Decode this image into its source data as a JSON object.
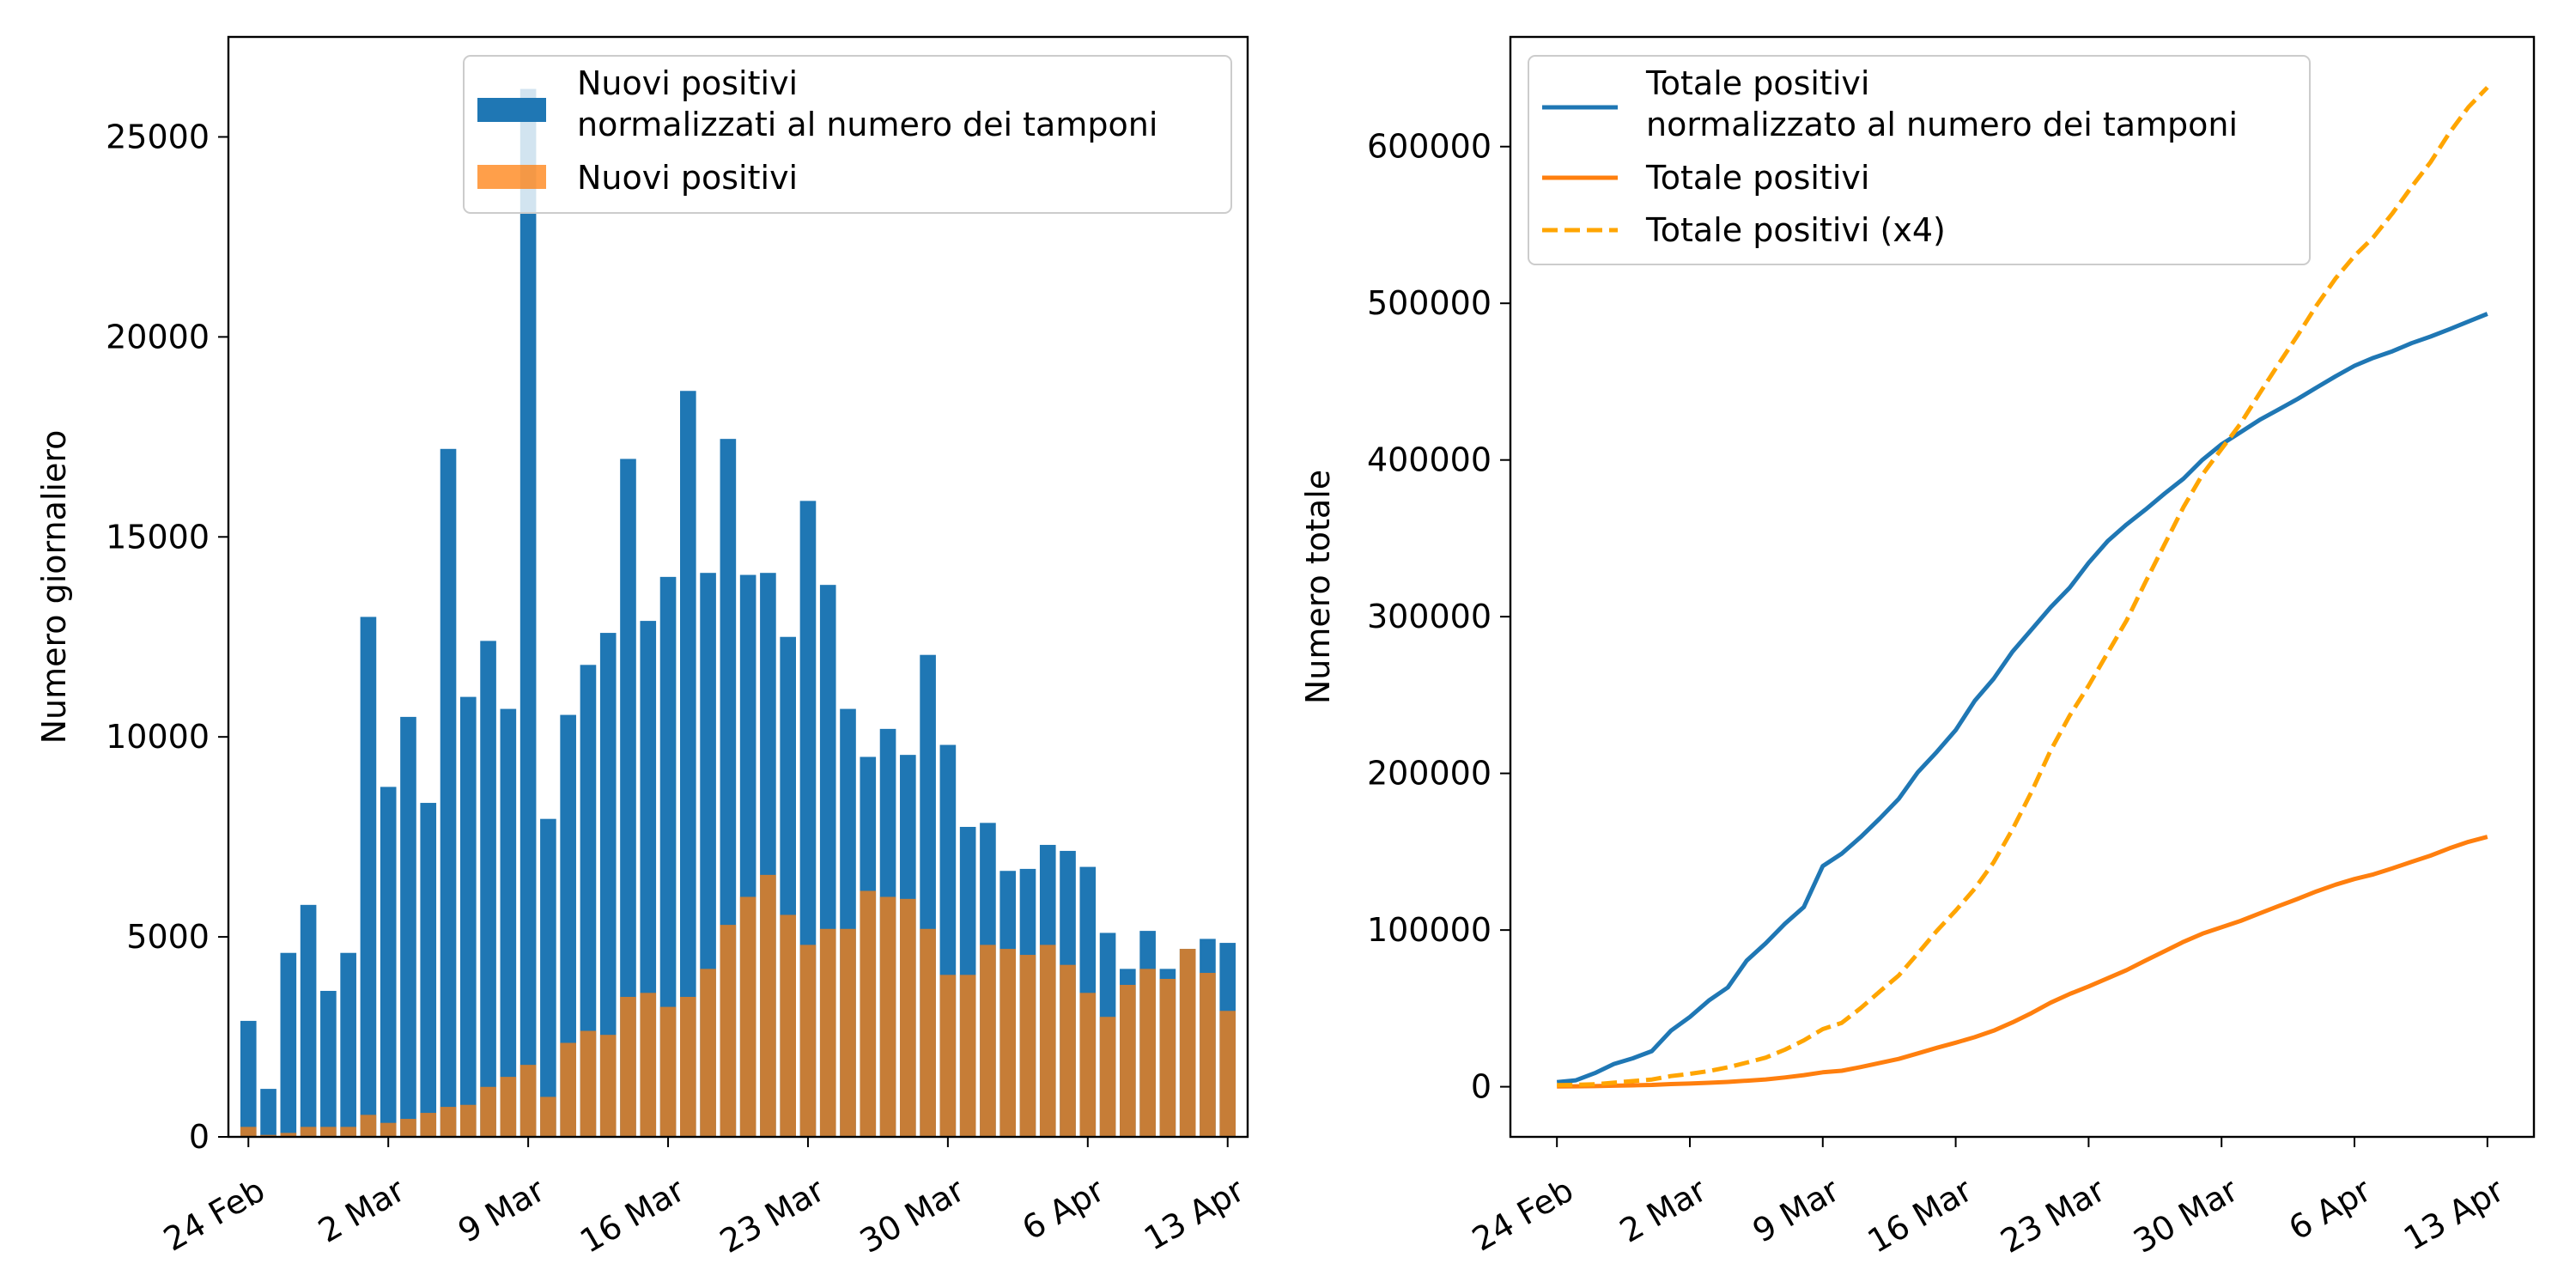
{
  "chart_data": [
    {
      "type": "bar",
      "title": "",
      "xlabel": "",
      "ylabel": "Numero giornaliero",
      "ylim": [
        0,
        27500
      ],
      "yticks": [
        0,
        5000,
        10000,
        15000,
        20000,
        25000
      ],
      "grid": false,
      "legend_position": "top-right",
      "x_tick_labels": [
        {
          "index": 0,
          "label": "24 Feb"
        },
        {
          "index": 7,
          "label": "2 Mar"
        },
        {
          "index": 14,
          "label": "9 Mar"
        },
        {
          "index": 21,
          "label": "16 Mar"
        },
        {
          "index": 28,
          "label": "23 Mar"
        },
        {
          "index": 35,
          "label": "30 Mar"
        },
        {
          "index": 42,
          "label": "6 Apr"
        },
        {
          "index": 49,
          "label": "13 Apr"
        }
      ],
      "x_start": "2020-02-24",
      "series": [
        {
          "name": "Nuovi positivi\nnormalizzati al numero dei tamponi",
          "color": "#1f77b4",
          "values": [
            2900,
            1200,
            4600,
            5800,
            3650,
            4600,
            13000,
            8750,
            10500,
            8350,
            17200,
            11000,
            12400,
            10700,
            26200,
            7950,
            10550,
            11800,
            12600,
            16950,
            12900,
            14000,
            18650,
            14100,
            17450,
            14050,
            14100,
            12500,
            15900,
            13800,
            10700,
            9500,
            10200,
            9550,
            12050,
            9800,
            7750,
            7850,
            6650,
            6700,
            7300,
            7150,
            6750,
            5100,
            4200,
            5150,
            4200,
            4700,
            4950,
            4850
          ]
        },
        {
          "name": "Nuovi positivi",
          "color": "#ff7f0e",
          "values": [
            250,
            50,
            100,
            250,
            250,
            250,
            550,
            350,
            450,
            600,
            750,
            800,
            1250,
            1500,
            1800,
            1000,
            2350,
            2650,
            2550,
            3500,
            3600,
            3250,
            3500,
            4200,
            5300,
            6000,
            6550,
            5550,
            4800,
            5200,
            5200,
            6150,
            6000,
            5950,
            5200,
            4050,
            4050,
            4800,
            4700,
            4550,
            4800,
            4300,
            3600,
            3000,
            3800,
            4200,
            3950,
            4700,
            4100,
            3150
          ]
        }
      ]
    },
    {
      "type": "line",
      "title": "",
      "xlabel": "",
      "ylabel": "Numero totale",
      "ylim": [
        -32000,
        670000
      ],
      "yticks": [
        0,
        100000,
        200000,
        300000,
        400000,
        500000,
        600000
      ],
      "grid": false,
      "legend_position": "top-left",
      "x_tick_labels": [
        {
          "index": 0,
          "label": "24 Feb"
        },
        {
          "index": 7,
          "label": "2 Mar"
        },
        {
          "index": 14,
          "label": "9 Mar"
        },
        {
          "index": 21,
          "label": "16 Mar"
        },
        {
          "index": 28,
          "label": "23 Mar"
        },
        {
          "index": 35,
          "label": "30 Mar"
        },
        {
          "index": 42,
          "label": "6 Apr"
        },
        {
          "index": 49,
          "label": "13 Apr"
        }
      ],
      "x_start": "2020-02-24",
      "series": [
        {
          "name": "Totale positivi\nnormalizzato al numero dei tamponi",
          "color": "#1f77b4",
          "dash": "solid",
          "values": [
            2900,
            4100,
            8700,
            14500,
            18150,
            22750,
            35750,
            44500,
            55000,
            63350,
            80550,
            91550,
            103950,
            114650,
            140850,
            148800,
            159350,
            171150,
            183750,
            200700,
            213600,
            227600,
            246250,
            260350,
            277800,
            291850,
            305950,
            318450,
            334350,
            348150,
            358850,
            368350,
            378550,
            388100,
            400150,
            409950,
            417700,
            425550,
            432200,
            438900,
            446200,
            453350,
            460100,
            465200,
            469400,
            474550,
            478750,
            483450,
            488400,
            493250
          ]
        },
        {
          "name": "Totale positivi",
          "color": "#ff7f0e",
          "dash": "solid",
          "values": [
            250,
            300,
            400,
            650,
            900,
            1150,
            1700,
            2050,
            2500,
            3100,
            3850,
            4650,
            5900,
            7400,
            9200,
            10200,
            12550,
            15200,
            17750,
            21250,
            24850,
            28100,
            31600,
            35800,
            41100,
            47100,
            53650,
            59200,
            64000,
            69200,
            74400,
            80550,
            86550,
            92500,
            97700,
            101750,
            105800,
            110600,
            115300,
            119850,
            124650,
            128950,
            132550,
            135550,
            139350,
            143550,
            147500,
            152200,
            156300,
            159450
          ]
        },
        {
          "name": "Totale positivi (x4)",
          "color": "#ffa500",
          "dash": "dashed",
          "values": [
            1000,
            1200,
            1600,
            2600,
            3600,
            4600,
            6800,
            8200,
            10000,
            12400,
            15400,
            18600,
            23600,
            29600,
            36800,
            40800,
            50200,
            60800,
            71000,
            85000,
            99400,
            112400,
            126400,
            143200,
            164400,
            188400,
            214600,
            236800,
            256000,
            276800,
            297600,
            322200,
            346200,
            370000,
            390800,
            407000,
            423200,
            442400,
            461200,
            479400,
            498600,
            515800,
            530200,
            542200,
            557400,
            574200,
            590000,
            608800,
            625200,
            637800
          ]
        }
      ]
    }
  ]
}
